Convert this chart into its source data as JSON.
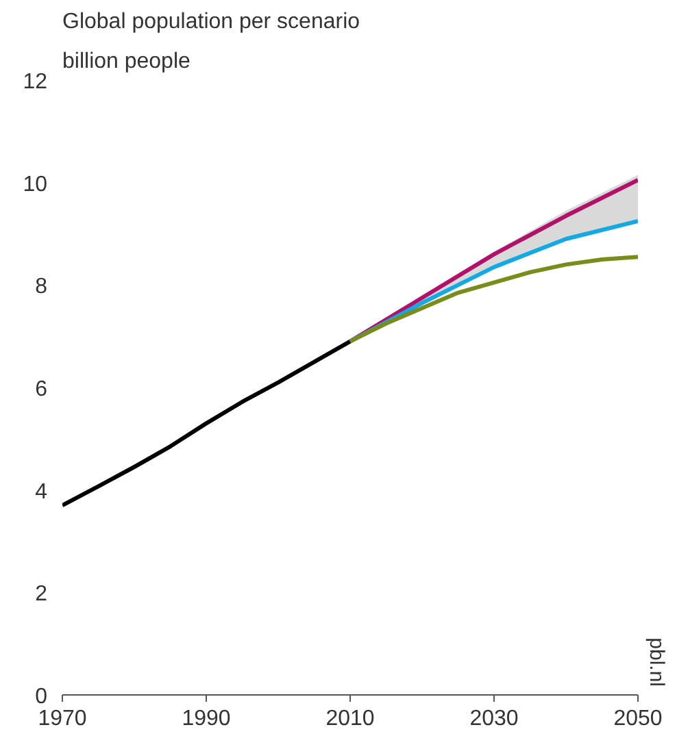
{
  "chart_data": {
    "type": "line",
    "title": "Global population per scenario",
    "ylabel": "billion people",
    "xlim": [
      1970,
      2050
    ],
    "xticks": [
      1970,
      1990,
      2010,
      2030,
      2050
    ],
    "ylim": [
      0,
      12
    ],
    "yticks": [
      0,
      2,
      4,
      6,
      8,
      10,
      12
    ],
    "grid": false,
    "annotations": [
      "pbl.nl"
    ],
    "series": [
      {
        "color": "#000000",
        "x": [
          1970,
          1975,
          1980,
          1985,
          1990,
          1995,
          2000,
          2005,
          2010
        ],
        "values": [
          3.7,
          4.07,
          4.45,
          4.85,
          5.3,
          5.72,
          6.1,
          6.5,
          6.9
        ]
      },
      {
        "color": "#b0126a",
        "x": [
          2010,
          2020,
          2030,
          2040,
          2050
        ],
        "values": [
          6.9,
          7.75,
          8.6,
          9.35,
          10.05
        ],
        "lower": [
          6.9,
          7.65,
          8.35,
          8.9,
          9.25
        ],
        "upper": [
          6.9,
          7.8,
          8.65,
          9.45,
          10.15
        ]
      },
      {
        "color": "#16a9e1",
        "x": [
          2010,
          2020,
          2030,
          2040,
          2050
        ],
        "values": [
          6.9,
          7.65,
          8.35,
          8.9,
          9.25
        ]
      },
      {
        "color": "#7a8c1c",
        "x": [
          2010,
          2015,
          2020,
          2025,
          2030,
          2035,
          2040,
          2045,
          2050
        ],
        "values": [
          6.9,
          7.25,
          7.55,
          7.85,
          8.05,
          8.25,
          8.4,
          8.5,
          8.55
        ]
      }
    ]
  }
}
